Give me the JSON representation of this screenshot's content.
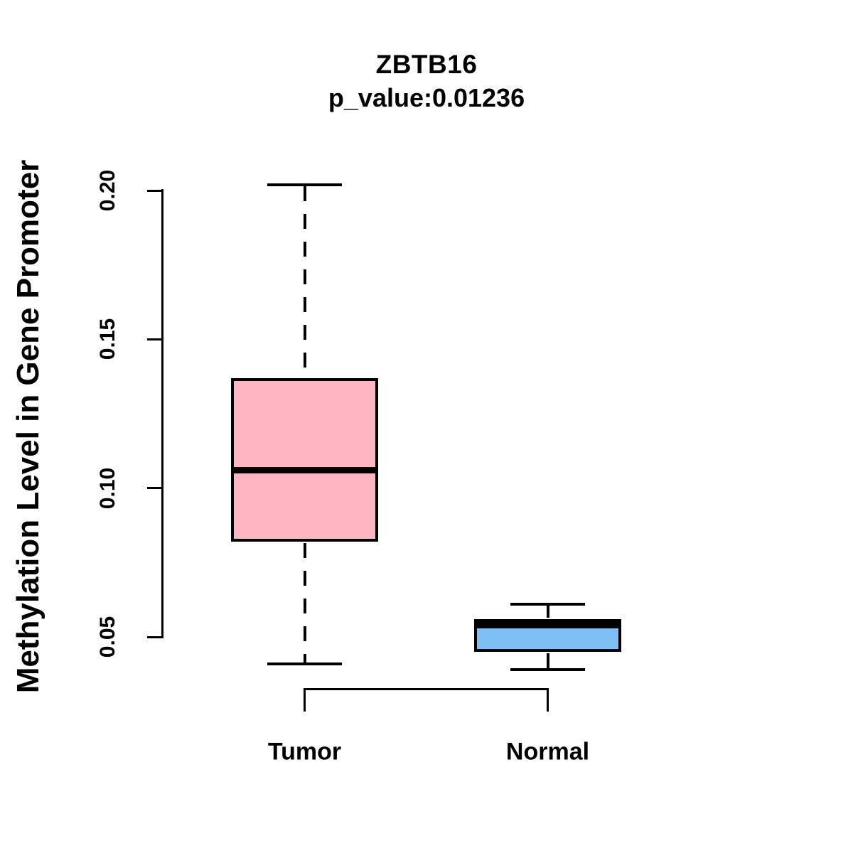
{
  "chart_data": {
    "type": "boxplot",
    "title": "ZBTB16",
    "subtitle": "p_value:0.01236",
    "p_value_text": "0.01236",
    "ylabel": "Methylation Level in Gene Promoter",
    "categories": [
      "Tumor",
      "Normal"
    ],
    "y_ticks": [
      0.05,
      0.1,
      0.15,
      0.2
    ],
    "y_tick_labels": [
      "0.05",
      "0.10",
      "0.15",
      "0.20"
    ],
    "ylim": [
      0.05,
      0.2
    ],
    "grid": false,
    "legend": "none",
    "whisker_style": "dashed",
    "stroke_color": "#000000",
    "background_color": "#ffffff",
    "series": [
      {
        "name": "Tumor",
        "color": "#FFB6C1",
        "whisker_low": 0.041,
        "q1": 0.082,
        "median": 0.106,
        "q3": 0.137,
        "whisker_high": 0.202
      },
      {
        "name": "Normal",
        "color": "#7EC0F5",
        "whisker_low": 0.039,
        "q1": 0.045,
        "median": 0.054,
        "q3": 0.056,
        "whisker_high": 0.061
      }
    ],
    "comparison_bracket": {
      "between": [
        "Tumor",
        "Normal"
      ]
    }
  }
}
